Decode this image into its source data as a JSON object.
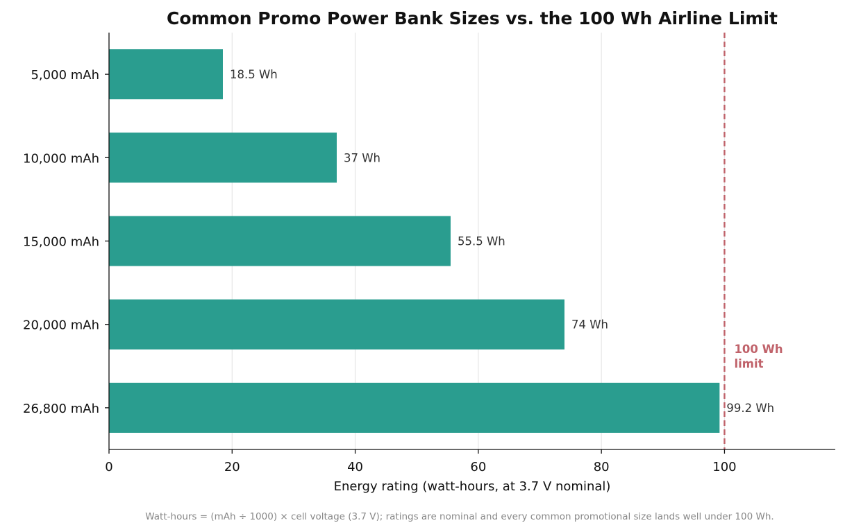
{
  "chart_data": {
    "type": "bar",
    "orientation": "horizontal",
    "title": "Common Promo Power Bank Sizes vs. the 100 Wh Airline Limit",
    "xlabel": "Energy rating (watt-hours, at 3.7 V nominal)",
    "ylabel": "",
    "categories": [
      "5,000 mAh",
      "10,000 mAh",
      "15,000 mAh",
      "20,000 mAh",
      "26,800 mAh"
    ],
    "values": [
      18.5,
      37,
      55.5,
      74,
      99.2
    ],
    "value_labels": [
      "18.5 Wh",
      "37 Wh",
      "55.5 Wh",
      "74 Wh",
      "99.2 Wh"
    ],
    "xlim": [
      0,
      118
    ],
    "xticks": [
      0,
      20,
      40,
      60,
      80,
      100
    ],
    "grid": "vertical",
    "bar_color": "#2a9d8f",
    "reference_line": {
      "value": 100,
      "label_lines": [
        "100 Wh",
        "limit"
      ],
      "color": "#c0626a",
      "style": "dashed"
    },
    "footnote": "Watt-hours = (mAh ÷ 1000) × cell voltage (3.7 V); ratings are nominal and every common promotional size lands well under 100 Wh."
  }
}
